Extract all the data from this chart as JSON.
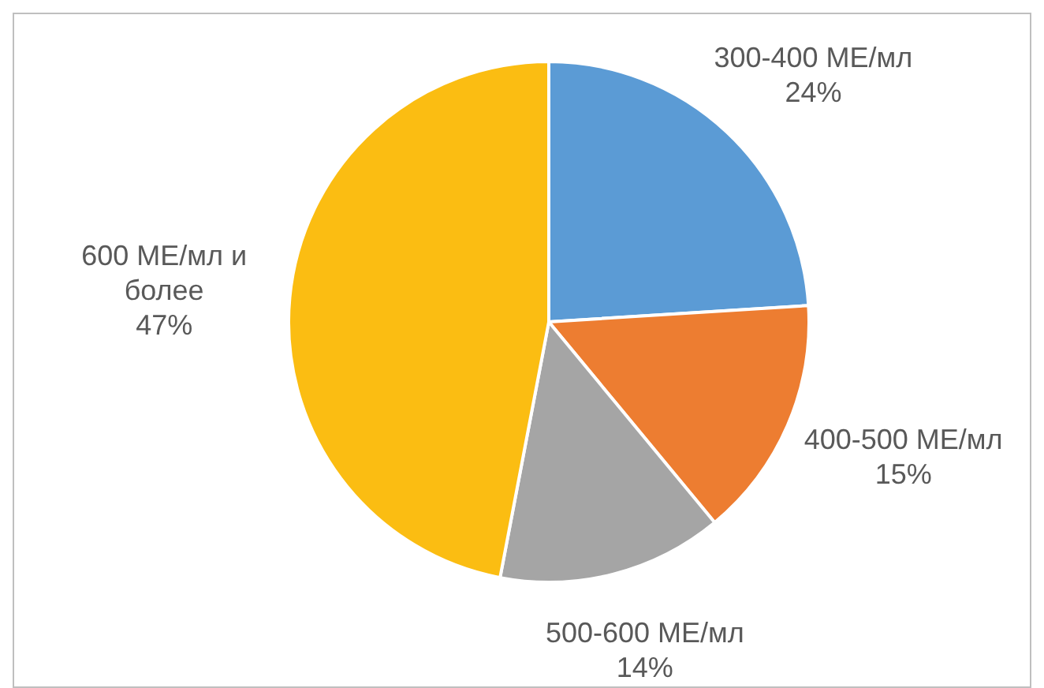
{
  "chart_data": {
    "type": "pie",
    "categories": [
      "300-400 МЕ/мл",
      "400-500 МЕ/мл",
      "500-600 МЕ/мл",
      "600 МЕ/мл и более"
    ],
    "values": [
      24,
      15,
      14,
      47
    ],
    "value_labels": [
      "24%",
      "15%",
      "14%",
      "47%"
    ],
    "colors": [
      "#5b9bd5",
      "#ed7d31",
      "#a5a5a5",
      "#fbbd12"
    ],
    "legend": false
  }
}
